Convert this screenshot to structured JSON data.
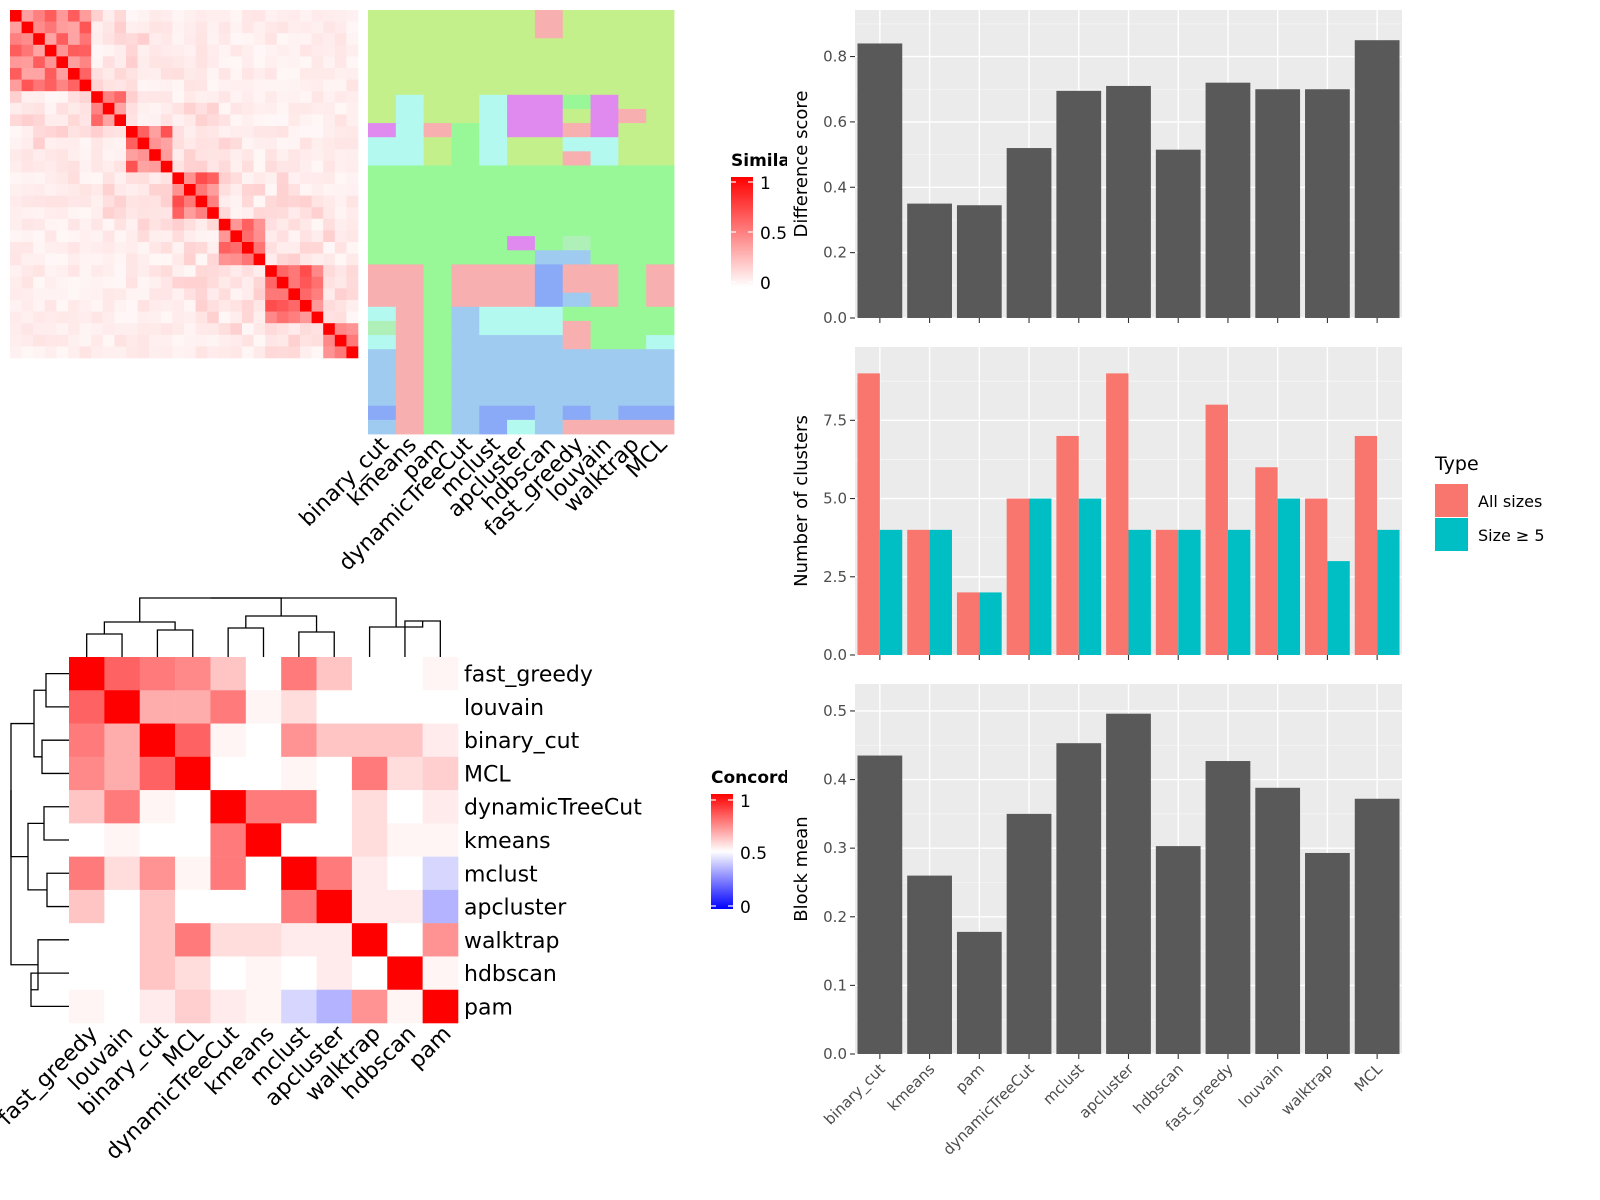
{
  "methods_order": [
    "binary_cut",
    "kmeans",
    "pam",
    "dynamicTreeCut",
    "mclust",
    "apcluster",
    "hdbscan",
    "fast_greedy",
    "louvain",
    "walktrap",
    "MCL"
  ],
  "colors": {
    "bar_gray": "#595959",
    "panel_bg": "#ebebeb",
    "all_sizes": "#F8766D",
    "size5": "#00BFC4",
    "heat_high": "#ff0000",
    "heat_low_concord": "#0000ff"
  },
  "similarity_legend": {
    "title": "Similarity",
    "ticks": [
      "1",
      "0.5",
      "0"
    ]
  },
  "concordance_legend": {
    "title": "Concordance",
    "ticks": [
      "1",
      "0.5",
      "0"
    ]
  },
  "concordance_rows": [
    "fast_greedy",
    "louvain",
    "binary_cut",
    "MCL",
    "dynamicTreeCut",
    "kmeans",
    "mclust",
    "apcluster",
    "walktrap",
    "hdbscan",
    "pam"
  ],
  "concordance_cols": [
    "fast_greedy",
    "louvain",
    "binary_cut",
    "MCL",
    "dynamicTreeCut",
    "kmeans",
    "mclust",
    "apcluster",
    "walktrap",
    "hdbscan",
    "pam"
  ],
  "concordance_matrix": [
    [
      1.0,
      0.8,
      0.75,
      0.72,
      0.6,
      0.4,
      0.75,
      0.6,
      0.4,
      0.3,
      0.5
    ],
    [
      0.8,
      1.0,
      0.65,
      0.65,
      0.75,
      0.5,
      0.55,
      0.4,
      0.4,
      0.35,
      0.48
    ],
    [
      0.75,
      0.65,
      1.0,
      0.8,
      0.5,
      0.35,
      0.7,
      0.6,
      0.6,
      0.6,
      0.52
    ],
    [
      0.72,
      0.65,
      0.8,
      1.0,
      0.4,
      0.25,
      0.5,
      0.3,
      0.75,
      0.55,
      0.58
    ],
    [
      0.6,
      0.75,
      0.5,
      0.4,
      1.0,
      0.75,
      0.75,
      0.4,
      0.55,
      0.4,
      0.52
    ],
    [
      0.4,
      0.5,
      0.35,
      0.25,
      0.75,
      1.0,
      0.4,
      0.3,
      0.55,
      0.5,
      0.5
    ],
    [
      0.75,
      0.55,
      0.7,
      0.5,
      0.75,
      0.4,
      1.0,
      0.75,
      0.52,
      0.4,
      0.42
    ],
    [
      0.6,
      0.4,
      0.6,
      0.3,
      0.4,
      0.3,
      0.75,
      1.0,
      0.52,
      0.52,
      0.35
    ],
    [
      0.4,
      0.4,
      0.6,
      0.75,
      0.55,
      0.55,
      0.52,
      0.52,
      1.0,
      0.4,
      0.7
    ],
    [
      0.3,
      0.35,
      0.6,
      0.55,
      0.4,
      0.5,
      0.4,
      0.52,
      0.4,
      1.0,
      0.5
    ],
    [
      0.5,
      0.48,
      0.52,
      0.58,
      0.52,
      0.5,
      0.42,
      0.35,
      0.7,
      0.5,
      1.0
    ]
  ],
  "chart_data": [
    {
      "type": "heatmap",
      "title": "",
      "description_key": "similarity",
      "n": 30,
      "diagonal": 1,
      "legend": "Similarity",
      "columns_right": [
        "binary_cut",
        "kmeans",
        "pam",
        "dynamicTreeCut",
        "mclust",
        "apcluster",
        "hdbscan",
        "fast_greedy",
        "louvain",
        "walktrap",
        "MCL"
      ]
    },
    {
      "type": "heatmap",
      "title": "",
      "legend": "Concordance",
      "rows": [
        "fast_greedy",
        "louvain",
        "binary_cut",
        "MCL",
        "dynamicTreeCut",
        "kmeans",
        "mclust",
        "apcluster",
        "walktrap",
        "hdbscan",
        "pam"
      ]
    },
    {
      "type": "bar",
      "categories": [
        "binary_cut",
        "kmeans",
        "pam",
        "dynamicTreeCut",
        "mclust",
        "apcluster",
        "hdbscan",
        "fast_greedy",
        "louvain",
        "walktrap",
        "MCL"
      ],
      "values": [
        0.84,
        0.35,
        0.345,
        0.52,
        0.695,
        0.71,
        0.515,
        0.72,
        0.7,
        0.7,
        0.85
      ],
      "ylabel": "Difference score",
      "ylim": [
        0,
        0.9
      ],
      "yticks": [
        "0.0",
        "0.2",
        "0.4",
        "0.6",
        "0.8"
      ],
      "ytick_values": [
        0,
        0.2,
        0.4,
        0.6,
        0.8
      ],
      "grid": true
    },
    {
      "type": "bar",
      "categories": [
        "binary_cut",
        "kmeans",
        "pam",
        "dynamicTreeCut",
        "mclust",
        "apcluster",
        "hdbscan",
        "fast_greedy",
        "louvain",
        "walktrap",
        "MCL"
      ],
      "series": [
        {
          "name": "All sizes",
          "values": [
            9,
            4,
            2,
            5,
            7,
            9,
            4,
            8,
            6,
            5,
            7
          ]
        },
        {
          "name": "Size ≥ 5",
          "values": [
            4,
            4,
            2,
            5,
            5,
            4,
            4,
            4,
            5,
            3,
            4
          ]
        }
      ],
      "ylabel": "Number of clusters",
      "ylim": [
        0,
        9.4
      ],
      "yticks": [
        "0.0",
        "2.5",
        "5.0",
        "7.5"
      ],
      "ytick_values": [
        0,
        2.5,
        5,
        7.5
      ],
      "legend_title": "Type",
      "legend_position": "right",
      "grid": true
    },
    {
      "type": "bar",
      "categories": [
        "binary_cut",
        "kmeans",
        "pam",
        "dynamicTreeCut",
        "mclust",
        "apcluster",
        "hdbscan",
        "fast_greedy",
        "louvain",
        "walktrap",
        "MCL"
      ],
      "values": [
        0.435,
        0.26,
        0.178,
        0.35,
        0.453,
        0.496,
        0.303,
        0.427,
        0.388,
        0.293,
        0.372
      ],
      "ylabel": "Block mean",
      "ylim": [
        0,
        0.515
      ],
      "yticks": [
        "0.0",
        "0.1",
        "0.2",
        "0.3",
        "0.4",
        "0.5"
      ],
      "ytick_values": [
        0,
        0.1,
        0.2,
        0.3,
        0.4,
        0.5
      ],
      "grid": true
    }
  ]
}
